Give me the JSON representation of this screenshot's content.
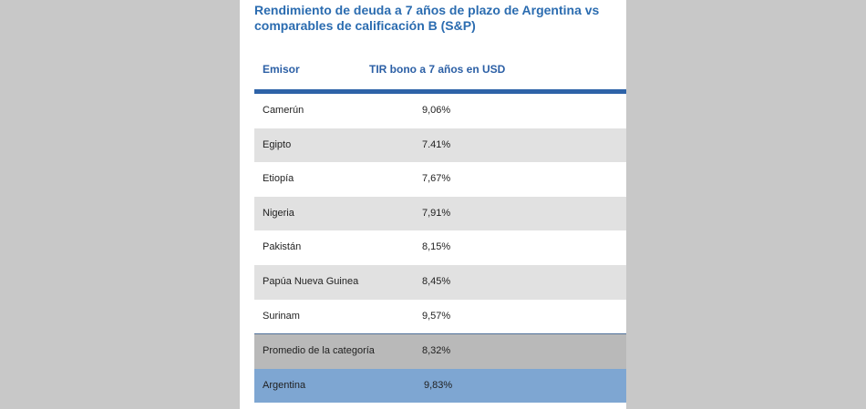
{
  "title": "Rendimiento de deuda a 7 años de plazo de Argentina vs comparables de calificación B (S&P)",
  "table": {
    "headers": [
      "Emisor",
      "TIR bono a 7 años en USD"
    ],
    "rows": [
      {
        "emisor": "Camerún",
        "tir": "9,06%"
      },
      {
        "emisor": "Egipto",
        "tir": "7.41%"
      },
      {
        "emisor": "Etiopía",
        "tir": "7,67%"
      },
      {
        "emisor": "Nigeria",
        "tir": "7,91%"
      },
      {
        "emisor": "Pakistán",
        "tir": "8,15%"
      },
      {
        "emisor": "Papúa Nueva Guinea",
        "tir": "8,45%"
      },
      {
        "emisor": "Surinam",
        "tir": "9,57%"
      }
    ],
    "average": {
      "emisor": "Promedio de la categoría",
      "tir": "8,32%"
    },
    "argentina": {
      "emisor": "Argentina",
      "tir": "9,83%"
    }
  },
  "colors": {
    "title": "#2b6cb0",
    "header_rule": "#2e63a8",
    "alt_row": "#e1e1e1",
    "average_row": "#b9b9b9",
    "argentina_row": "#7ea6d2"
  }
}
